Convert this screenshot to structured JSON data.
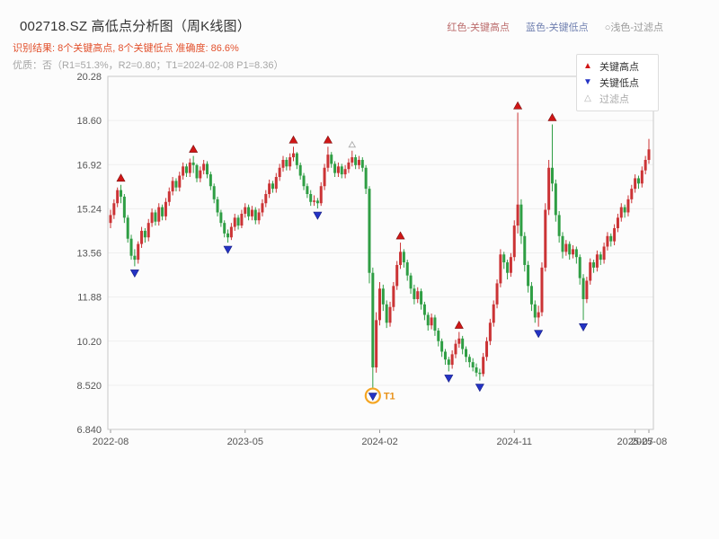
{
  "header": {
    "title": "002718.SZ 高低点分析图（周K线图）",
    "top_legend": [
      {
        "label": "红色-关键高点",
        "color": "#bb6b6b"
      },
      {
        "label": "蓝色-关键低点",
        "color": "#7080b0"
      },
      {
        "label": "○浅色-过滤点",
        "color": "#9a9a9a"
      }
    ],
    "result_line": "识别结果: 8个关键高点, 8个关键低点  准确度: 86.6%",
    "quality_line": "优质：否（R1=51.3%，R2=0.80；T1=2024-02-08 P1=8.36）"
  },
  "legend_box": {
    "items": [
      {
        "label": "关键高点",
        "marker": "up",
        "color": "#d01616",
        "text_color": "#333333"
      },
      {
        "label": "关键低点",
        "marker": "down",
        "color": "#2433c4",
        "text_color": "#333333"
      },
      {
        "label": "过滤点",
        "marker": "hollow",
        "color": "#b0b0b0",
        "text_color": "#aaaaaa"
      }
    ]
  },
  "chart_data": {
    "type": "candlestick",
    "symbol": "002718.SZ",
    "timeframe": "weekly",
    "title": "002718.SZ 高低点分析图（周K线图）",
    "ylim": [
      6.84,
      20.28
    ],
    "grid": true,
    "up_color": "#cb3335",
    "down_color": "#2f9e44",
    "high_marker_color": "#d01616",
    "low_marker_color": "#2433c4",
    "filtered_marker_color": "#b0b0b0",
    "y_ticks": [
      {
        "value": 20.28,
        "label": "20.28"
      },
      {
        "value": 18.6,
        "label": "18.60"
      },
      {
        "value": 16.92,
        "label": "16.92"
      },
      {
        "value": 15.24,
        "label": "15.24"
      },
      {
        "value": 13.56,
        "label": "13.56"
      },
      {
        "value": 11.88,
        "label": "11.88"
      },
      {
        "value": 10.2,
        "label": "10.20"
      },
      {
        "value": 8.52,
        "label": "8.520"
      },
      {
        "value": 6.84,
        "label": "6.840"
      }
    ],
    "x_ticks": [
      {
        "week": 0,
        "label": "2022-08"
      },
      {
        "week": 39,
        "label": "2023-05"
      },
      {
        "week": 78,
        "label": "2024-02"
      },
      {
        "week": 117,
        "label": "2024-11"
      },
      {
        "week": 152,
        "label": "2025-07"
      },
      {
        "week": 156,
        "label": "2025-08"
      }
    ],
    "candles": [
      [
        14.7,
        15.2,
        14.5,
        15.0
      ],
      [
        15.0,
        15.6,
        14.85,
        15.45
      ],
      [
        15.45,
        16.05,
        15.3,
        15.95
      ],
      [
        15.95,
        16.15,
        15.45,
        15.7
      ],
      [
        15.7,
        15.8,
        14.7,
        14.9
      ],
      [
        14.9,
        15.0,
        13.95,
        14.1
      ],
      [
        14.1,
        14.25,
        13.3,
        13.45
      ],
      [
        13.45,
        13.7,
        13.05,
        13.3
      ],
      [
        13.3,
        14.0,
        13.15,
        13.9
      ],
      [
        13.9,
        14.55,
        13.75,
        14.4
      ],
      [
        14.4,
        14.5,
        13.95,
        14.15
      ],
      [
        14.15,
        14.85,
        14.0,
        14.7
      ],
      [
        14.7,
        15.25,
        14.55,
        15.1
      ],
      [
        15.1,
        15.2,
        14.6,
        14.75
      ],
      [
        14.75,
        15.45,
        14.6,
        15.3
      ],
      [
        15.3,
        15.4,
        14.8,
        14.95
      ],
      [
        14.95,
        15.65,
        14.8,
        15.5
      ],
      [
        15.5,
        16.05,
        15.35,
        15.9
      ],
      [
        15.9,
        16.45,
        15.75,
        16.3
      ],
      [
        16.3,
        16.4,
        15.9,
        16.05
      ],
      [
        16.05,
        16.65,
        15.9,
        16.5
      ],
      [
        16.5,
        17.0,
        16.35,
        16.85
      ],
      [
        16.85,
        16.95,
        16.45,
        16.6
      ],
      [
        16.6,
        17.15,
        16.45,
        17.0
      ],
      [
        17.0,
        17.25,
        16.6,
        16.9
      ],
      [
        16.9,
        16.95,
        16.25,
        16.4
      ],
      [
        16.4,
        16.85,
        16.25,
        16.7
      ],
      [
        16.7,
        17.1,
        16.55,
        16.95
      ],
      [
        16.95,
        17.05,
        16.4,
        16.55
      ],
      [
        16.55,
        16.65,
        15.95,
        16.1
      ],
      [
        16.1,
        16.2,
        15.45,
        15.6
      ],
      [
        15.6,
        15.7,
        14.95,
        15.1
      ],
      [
        15.1,
        15.2,
        14.55,
        14.7
      ],
      [
        14.7,
        14.8,
        14.15,
        14.3
      ],
      [
        14.3,
        14.45,
        13.95,
        14.15
      ],
      [
        14.15,
        14.7,
        14.05,
        14.55
      ],
      [
        14.55,
        15.05,
        14.4,
        14.9
      ],
      [
        14.9,
        15.0,
        14.45,
        14.6
      ],
      [
        14.6,
        15.2,
        14.5,
        15.05
      ],
      [
        15.05,
        15.45,
        14.9,
        15.3
      ],
      [
        15.3,
        15.4,
        14.8,
        14.95
      ],
      [
        14.95,
        15.35,
        14.8,
        15.2
      ],
      [
        15.2,
        15.3,
        14.65,
        14.8
      ],
      [
        14.8,
        15.25,
        14.65,
        15.1
      ],
      [
        15.1,
        15.6,
        14.95,
        15.45
      ],
      [
        15.45,
        15.95,
        15.3,
        15.8
      ],
      [
        15.8,
        16.35,
        15.65,
        16.2
      ],
      [
        16.2,
        16.3,
        15.85,
        16.0
      ],
      [
        16.0,
        16.6,
        15.85,
        16.45
      ],
      [
        16.45,
        16.95,
        16.3,
        16.8
      ],
      [
        16.8,
        17.25,
        16.65,
        17.1
      ],
      [
        17.1,
        17.2,
        16.7,
        16.85
      ],
      [
        16.85,
        17.35,
        16.7,
        17.2
      ],
      [
        17.2,
        17.6,
        17.05,
        17.35
      ],
      [
        17.35,
        17.4,
        16.75,
        16.9
      ],
      [
        16.9,
        17.0,
        16.35,
        16.5
      ],
      [
        16.5,
        16.6,
        15.95,
        16.1
      ],
      [
        16.1,
        16.2,
        15.65,
        15.8
      ],
      [
        15.8,
        15.95,
        15.35,
        15.5
      ],
      [
        15.5,
        15.75,
        15.35,
        15.55
      ],
      [
        15.55,
        15.65,
        15.25,
        15.45
      ],
      [
        15.45,
        16.25,
        15.35,
        16.1
      ],
      [
        16.1,
        16.95,
        15.95,
        16.8
      ],
      [
        16.8,
        17.6,
        16.65,
        17.3
      ],
      [
        17.3,
        17.4,
        16.8,
        16.95
      ],
      [
        16.95,
        17.05,
        16.45,
        16.6
      ],
      [
        16.6,
        17.0,
        16.45,
        16.85
      ],
      [
        16.85,
        16.95,
        16.4,
        16.55
      ],
      [
        16.55,
        16.9,
        16.4,
        16.75
      ],
      [
        16.75,
        17.15,
        16.6,
        17.0
      ],
      [
        17.0,
        17.45,
        16.85,
        17.2
      ],
      [
        17.2,
        17.3,
        16.75,
        16.9
      ],
      [
        16.9,
        17.25,
        16.75,
        17.1
      ],
      [
        17.1,
        17.2,
        16.65,
        16.8
      ],
      [
        16.8,
        16.9,
        15.8,
        16.0
      ],
      [
        16.0,
        16.1,
        12.4,
        12.8
      ],
      [
        12.8,
        13.0,
        8.36,
        9.2
      ],
      [
        9.2,
        11.3,
        9.0,
        11.0
      ],
      [
        11.0,
        12.45,
        10.8,
        12.2
      ],
      [
        12.2,
        12.35,
        11.35,
        11.6
      ],
      [
        11.6,
        11.75,
        10.7,
        10.9
      ],
      [
        10.9,
        11.7,
        10.75,
        11.5
      ],
      [
        11.5,
        12.45,
        11.35,
        12.3
      ],
      [
        12.3,
        13.25,
        12.15,
        13.1
      ],
      [
        13.1,
        13.95,
        12.95,
        13.6
      ],
      [
        13.6,
        13.7,
        13.0,
        13.2
      ],
      [
        13.2,
        13.3,
        12.5,
        12.7
      ],
      [
        12.7,
        12.8,
        12.0,
        12.2
      ],
      [
        12.2,
        12.35,
        11.6,
        11.8
      ],
      [
        11.8,
        12.25,
        11.65,
        12.1
      ],
      [
        12.1,
        12.2,
        11.4,
        11.6
      ],
      [
        11.6,
        11.7,
        11.0,
        11.2
      ],
      [
        11.2,
        11.3,
        10.6,
        10.8
      ],
      [
        10.8,
        11.25,
        10.65,
        11.1
      ],
      [
        11.1,
        11.2,
        10.4,
        10.6
      ],
      [
        10.6,
        10.7,
        10.0,
        10.2
      ],
      [
        10.2,
        10.3,
        9.6,
        9.8
      ],
      [
        9.8,
        9.9,
        9.3,
        9.5
      ],
      [
        9.5,
        9.6,
        9.05,
        9.3
      ],
      [
        9.3,
        9.85,
        9.15,
        9.7
      ],
      [
        9.7,
        10.25,
        9.55,
        10.1
      ],
      [
        10.1,
        10.55,
        9.95,
        10.3
      ],
      [
        10.3,
        10.4,
        9.7,
        9.9
      ],
      [
        9.9,
        10.0,
        9.4,
        9.6
      ],
      [
        9.6,
        9.7,
        9.2,
        9.4
      ],
      [
        9.4,
        9.55,
        9.05,
        9.2
      ],
      [
        9.2,
        9.35,
        8.85,
        9.0
      ],
      [
        9.0,
        9.15,
        8.7,
        8.95
      ],
      [
        8.95,
        9.75,
        8.85,
        9.6
      ],
      [
        9.6,
        10.35,
        9.45,
        10.2
      ],
      [
        10.2,
        11.05,
        10.05,
        10.9
      ],
      [
        10.9,
        11.75,
        10.75,
        11.6
      ],
      [
        11.6,
        12.55,
        11.45,
        12.4
      ],
      [
        12.4,
        13.7,
        12.25,
        13.5
      ],
      [
        13.5,
        13.6,
        12.95,
        13.2
      ],
      [
        13.2,
        13.3,
        12.55,
        12.8
      ],
      [
        12.8,
        13.55,
        12.65,
        13.4
      ],
      [
        13.4,
        14.8,
        13.25,
        14.6
      ],
      [
        14.6,
        18.9,
        14.3,
        15.4
      ],
      [
        15.4,
        15.6,
        13.9,
        14.2
      ],
      [
        14.2,
        14.35,
        12.85,
        13.1
      ],
      [
        13.1,
        13.25,
        12.05,
        12.3
      ],
      [
        12.3,
        12.45,
        11.35,
        11.6
      ],
      [
        11.6,
        11.75,
        10.9,
        11.1
      ],
      [
        11.1,
        11.55,
        10.75,
        11.3
      ],
      [
        11.3,
        13.2,
        11.15,
        13.0
      ],
      [
        13.0,
        15.45,
        12.85,
        15.2
      ],
      [
        15.2,
        17.1,
        15.0,
        16.8
      ],
      [
        16.8,
        18.45,
        15.9,
        16.2
      ],
      [
        16.2,
        16.35,
        14.75,
        15.0
      ],
      [
        15.0,
        15.15,
        13.95,
        14.2
      ],
      [
        14.2,
        14.35,
        13.35,
        13.6
      ],
      [
        13.6,
        14.05,
        13.45,
        13.9
      ],
      [
        13.9,
        14.0,
        13.3,
        13.5
      ],
      [
        13.5,
        13.85,
        13.35,
        13.7
      ],
      [
        13.7,
        13.8,
        13.15,
        13.4
      ],
      [
        13.4,
        13.5,
        12.35,
        12.6
      ],
      [
        12.6,
        12.75,
        11.0,
        11.8
      ],
      [
        11.8,
        12.65,
        11.65,
        12.5
      ],
      [
        12.5,
        13.35,
        12.35,
        13.2
      ],
      [
        13.2,
        13.3,
        12.8,
        13.0
      ],
      [
        13.0,
        13.65,
        12.85,
        13.5
      ],
      [
        13.5,
        13.6,
        13.1,
        13.3
      ],
      [
        13.3,
        13.95,
        13.15,
        13.8
      ],
      [
        13.8,
        14.35,
        13.65,
        14.2
      ],
      [
        14.2,
        14.3,
        13.8,
        14.0
      ],
      [
        14.0,
        14.65,
        13.85,
        14.5
      ],
      [
        14.5,
        15.05,
        14.35,
        14.9
      ],
      [
        14.9,
        15.45,
        14.75,
        15.3
      ],
      [
        15.3,
        15.4,
        14.9,
        15.1
      ],
      [
        15.1,
        15.75,
        14.95,
        15.6
      ],
      [
        15.6,
        16.15,
        15.45,
        16.0
      ],
      [
        16.0,
        16.55,
        15.85,
        16.4
      ],
      [
        16.4,
        16.5,
        16.0,
        16.2
      ],
      [
        16.2,
        16.85,
        16.05,
        16.7
      ],
      [
        16.7,
        17.25,
        16.55,
        17.1
      ],
      [
        17.1,
        17.9,
        16.95,
        17.5
      ]
    ],
    "key_highs": [
      {
        "week": 3,
        "price": 16.15
      },
      {
        "week": 24,
        "price": 17.25
      },
      {
        "week": 53,
        "price": 17.6
      },
      {
        "week": 63,
        "price": 17.6
      },
      {
        "week": 84,
        "price": 13.95
      },
      {
        "week": 101,
        "price": 10.55
      },
      {
        "week": 118,
        "price": 18.9
      },
      {
        "week": 128,
        "price": 18.45
      }
    ],
    "key_lows": [
      {
        "week": 7,
        "price": 13.05
      },
      {
        "week": 34,
        "price": 13.95
      },
      {
        "week": 60,
        "price": 15.25
      },
      {
        "week": 76,
        "price": 8.36
      },
      {
        "week": 98,
        "price": 9.05
      },
      {
        "week": 107,
        "price": 8.7
      },
      {
        "week": 124,
        "price": 10.75
      },
      {
        "week": 137,
        "price": 11.0
      }
    ],
    "filtered_points": [
      {
        "week": 70,
        "price": 17.45
      }
    ],
    "t1_annotation": {
      "week": 76,
      "price": 8.36,
      "label": "T1",
      "circle_color": "#f5a623",
      "text_color": "#e8921a"
    }
  }
}
